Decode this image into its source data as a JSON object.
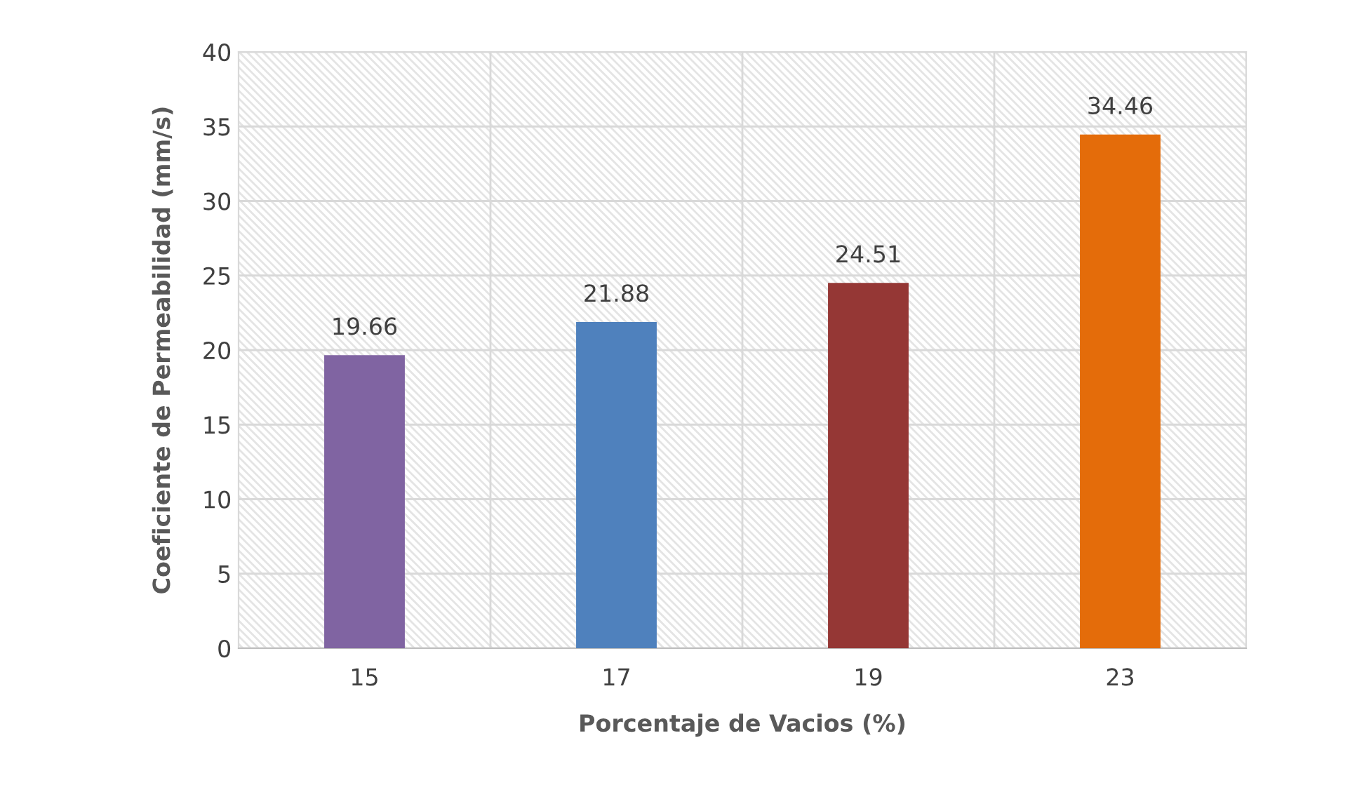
{
  "chart_data": {
    "type": "bar",
    "xlabel": "Porcentaje de Vacios (%)",
    "ylabel": "Coeficiente de Permeabilidad (mm/s)",
    "categories": [
      "15",
      "17",
      "19",
      "23"
    ],
    "values": [
      19.66,
      21.88,
      24.51,
      34.46
    ],
    "colors": [
      "#8064a2",
      "#4f81bd",
      "#953735",
      "#e46c0a"
    ],
    "ylim": [
      0,
      40
    ],
    "yticks": [
      0,
      5,
      10,
      15,
      20,
      25,
      30,
      35,
      40
    ],
    "grid": true,
    "data_labels": true
  }
}
